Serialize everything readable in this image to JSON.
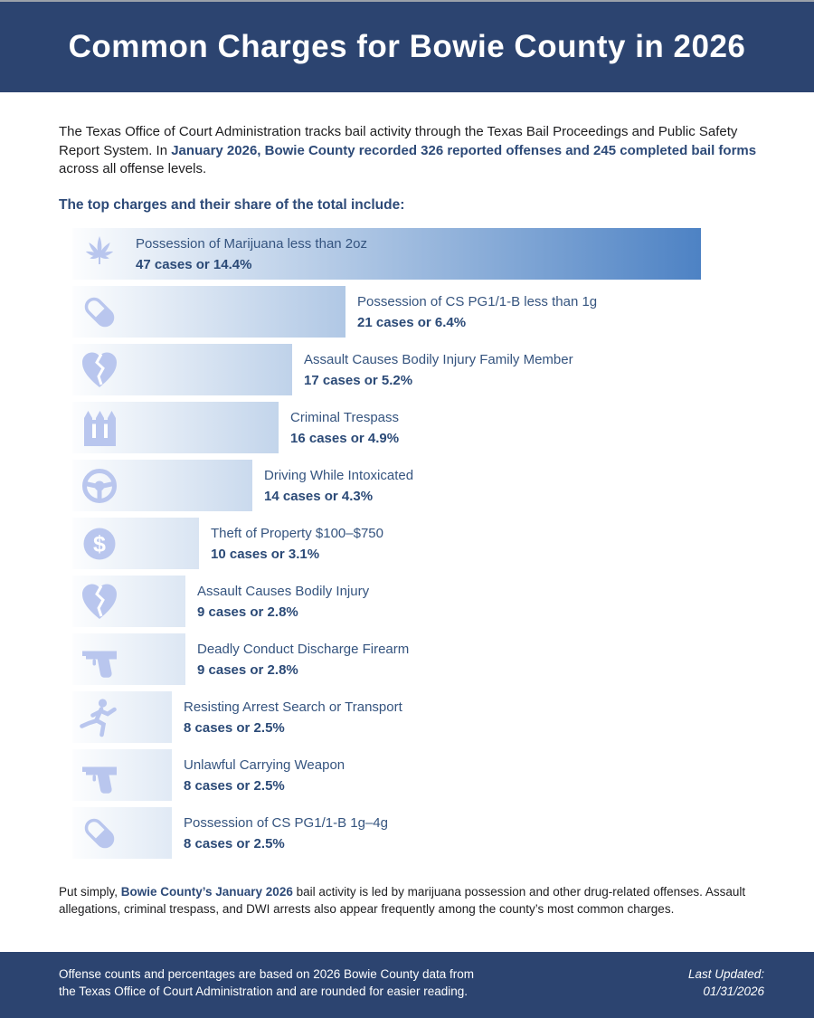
{
  "header": {
    "title": "Common Charges for Bowie County in 2026"
  },
  "intro": {
    "text_before": "The Texas Office of Court Administration tracks bail activity through the Texas Bail Proceedings and Public Safety Report System. In ",
    "highlight": "January 2026, Bowie County recorded 326 reported offenses and 245 completed bail forms",
    "text_after": " across all offense levels."
  },
  "subtitle": "The top charges and their share of the total include:",
  "chart_data": {
    "type": "bar",
    "orientation": "horizontal",
    "title": "The top charges and their share of the total include:",
    "xlabel": "",
    "ylabel": "",
    "unit": "cases",
    "total_reported_offenses": 326,
    "completed_bail_forms": 245,
    "categories": [
      "Possession of Marijuana less than 2oz",
      "Possession of CS PG1/1-B less than 1g",
      "Assault Causes Bodily Injury Family Member",
      "Criminal Trespass",
      "Driving While Intoxicated",
      "Theft of Property $100–$750",
      "Assault Causes Bodily Injury",
      "Deadly Conduct Discharge Firearm",
      "Resisting Arrest Search or Transport",
      "Unlawful Carrying Weapon",
      "Possession of CS PG1/1-B 1g–4g"
    ],
    "values": [
      47,
      21,
      17,
      16,
      14,
      10,
      9,
      9,
      8,
      8,
      8
    ],
    "percents": [
      14.4,
      6.4,
      5.2,
      4.9,
      4.3,
      3.1,
      2.8,
      2.8,
      2.5,
      2.5,
      2.5
    ],
    "items": [
      {
        "icon": "marijuana-leaf-icon",
        "label": "Possession of Marijuana less than 2oz",
        "cases": 47,
        "percent": 14.4,
        "stat": "47 cases or 14.4%"
      },
      {
        "icon": "pill-icon",
        "label": "Possession of CS PG1/1-B less than 1g",
        "cases": 21,
        "percent": 6.4,
        "stat": "21 cases or 6.4%"
      },
      {
        "icon": "broken-heart-icon",
        "label": "Assault Causes Bodily Injury Family Member",
        "cases": 17,
        "percent": 5.2,
        "stat": "17 cases or 5.2%"
      },
      {
        "icon": "fence-icon",
        "label": "Criminal Trespass",
        "cases": 16,
        "percent": 4.9,
        "stat": "16 cases or 4.9%"
      },
      {
        "icon": "steering-wheel-icon",
        "label": "Driving While Intoxicated",
        "cases": 14,
        "percent": 4.3,
        "stat": "14 cases or 4.3%"
      },
      {
        "icon": "dollar-circle-icon",
        "label": "Theft of Property $100–$750",
        "cases": 10,
        "percent": 3.1,
        "stat": "10 cases or 3.1%"
      },
      {
        "icon": "broken-heart-icon",
        "label": "Assault Causes Bodily Injury",
        "cases": 9,
        "percent": 2.8,
        "stat": "9 cases or 2.8%"
      },
      {
        "icon": "handgun-icon",
        "label": "Deadly Conduct Discharge Firearm",
        "cases": 9,
        "percent": 2.8,
        "stat": "9 cases or 2.8%"
      },
      {
        "icon": "running-person-icon",
        "label": "Resisting Arrest Search or Transport",
        "cases": 8,
        "percent": 2.5,
        "stat": "8 cases or 2.5%"
      },
      {
        "icon": "handgun-icon",
        "label": "Unlawful Carrying Weapon",
        "cases": 8,
        "percent": 2.5,
        "stat": "8 cases or 2.5%"
      },
      {
        "icon": "pill-icon",
        "label": "Possession of CS PG1/1-B 1g–4g",
        "cases": 8,
        "percent": 2.5,
        "stat": "8 cases or 2.5%"
      }
    ]
  },
  "conclusion": {
    "text_before": "Put simply, ",
    "highlight": "Bowie County’s January 2026",
    "text_after": " bail activity is led by marijuana possession and other drug-related offenses. Assault allegations, criminal trespass, and DWI arrests also appear frequently among the county’s most common charges."
  },
  "footer": {
    "source_text": "Offense counts and percentages are based on 2026 Bowie County data from the Texas Office of Court Administration and are rounded for easier reading.",
    "source_line1": "Offense counts and percentages are based on 2026 Bowie County data from",
    "source_line2": "the Texas Office of Court Administration and are rounded for easier reading.",
    "updated_label": "Last Updated:",
    "updated_date": "01/31/2026"
  },
  "colors": {
    "banner_navy": "#2c4470",
    "bar_gradient_start": "#fcfdfe",
    "bar_gradient_end": "#4d82c4",
    "icon_periwinkle": "#b9c6ee",
    "text_navy": "#2d4a78",
    "body_text": "#1d1d1f"
  }
}
